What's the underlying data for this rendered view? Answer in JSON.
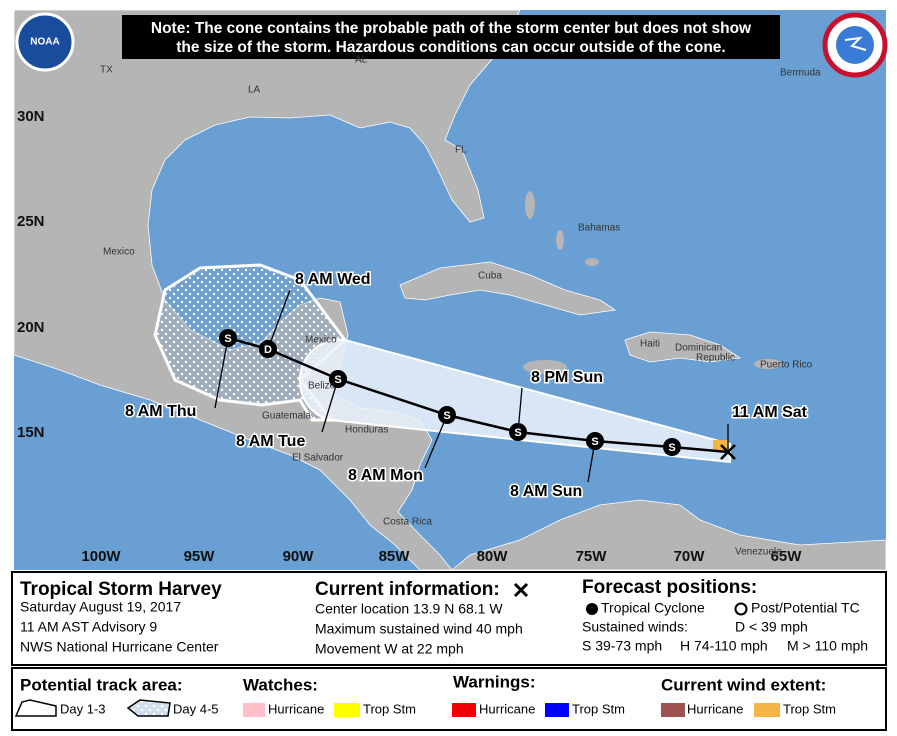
{
  "logo": "NOAA",
  "note": [
    "Note: The cone contains the probable path of the storm center but does not show",
    "the size of the storm. Hazardous conditions can occur outside of the cone."
  ],
  "map": {
    "latitudes": [
      "30N",
      "25N",
      "20N",
      "15N"
    ],
    "longitudes": [
      "100W",
      "95W",
      "90W",
      "85W",
      "80W",
      "75W",
      "70W",
      "65W"
    ],
    "places": [
      "TX",
      "LA",
      "AL",
      "FL",
      "Mexico",
      "Cuba",
      "Bahamas",
      "Haiti",
      "Dominican",
      "Republic",
      "Puerto Rico",
      "Bermuda",
      "Mexico",
      "Belize",
      "Guatemala",
      "Honduras",
      "El Salvador",
      "Costa Rica",
      "Venezuela"
    ]
  },
  "track": {
    "symbols": [
      "S",
      "S",
      "S",
      "S",
      "S",
      "D",
      "S"
    ],
    "labels": [
      "11 AM Sat",
      "8 AM Sun",
      "8 PM Sun",
      "8 AM Mon",
      "8 AM Tue",
      "8 AM Wed",
      "8 AM Thu"
    ]
  },
  "storm": {
    "title": "Tropical Storm Harvey",
    "lines": [
      "Saturday August 19, 2017",
      "11 AM AST Advisory 9",
      "NWS National Hurricane Center"
    ]
  },
  "current": {
    "title": "Current information:",
    "lines": [
      "Center location 13.9 N 68.1 W",
      "Maximum sustained wind 40 mph",
      "Movement W at 22 mph"
    ]
  },
  "forecast": {
    "title": "Forecast positions:",
    "tropical": "Tropical Cyclone",
    "post": "Post/Potential TC",
    "winds": "Sustained winds:",
    "d": "D < 39 mph",
    "s": "S 39-73 mph",
    "h": "H 74-110 mph",
    "m": "M > 110 mph"
  },
  "legend": {
    "track_title": "Potential track area:",
    "day13": "Day 1-3",
    "day45": "Day 4-5",
    "watches": {
      "title": "Watches:",
      "items": [
        "Hurricane",
        "Trop Stm"
      ]
    },
    "warnings": {
      "title": "Warnings:",
      "items": [
        "Hurricane",
        "Trop Stm"
      ]
    },
    "wind": {
      "title": "Current wind extent:",
      "items": [
        "Hurricane",
        "Trop Stm"
      ]
    }
  }
}
